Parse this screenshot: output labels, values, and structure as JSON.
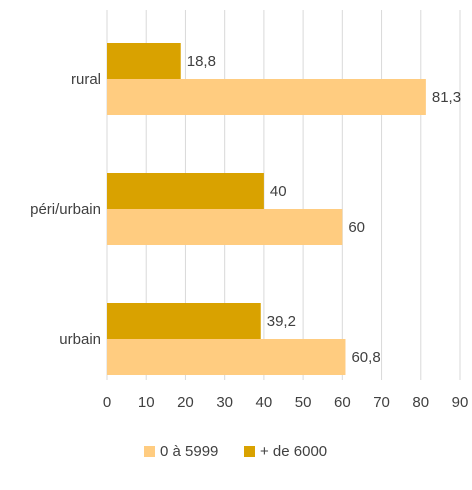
{
  "chart_data": {
    "type": "bar",
    "orientation": "horizontal",
    "categories": [
      "rural",
      "péri/urbain",
      "urbain"
    ],
    "series": [
      {
        "name": "0 à 5999",
        "values": [
          "81,3",
          "60",
          "60,8"
        ],
        "numeric": [
          81.3,
          60,
          60.8
        ],
        "color": "#FFCC80"
      },
      {
        "name": "+ de 6000",
        "values": [
          "18,8",
          "40",
          "39,2"
        ],
        "numeric": [
          18.8,
          40,
          39.2
        ],
        "color": "#D9A200"
      }
    ],
    "xlim": [
      0,
      90
    ],
    "xticks": [
      "0",
      "10",
      "20",
      "30",
      "40",
      "50",
      "60",
      "70",
      "80",
      "90"
    ],
    "grid": true,
    "legend_position": "bottom",
    "title": "",
    "xlabel": "",
    "ylabel": ""
  }
}
